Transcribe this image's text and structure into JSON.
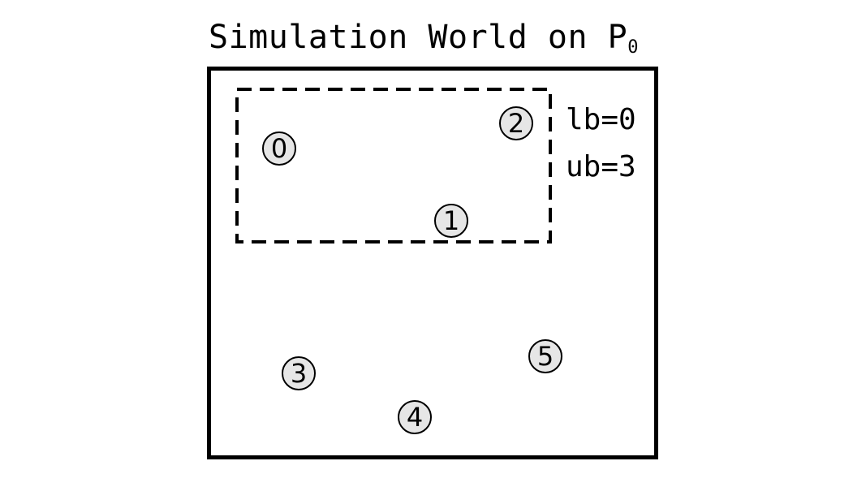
{
  "diagram": {
    "title": "Simulation World on P",
    "title_subscript": "0",
    "bounds": {
      "lb": "lb=0",
      "ub": "ub=3"
    },
    "agents": [
      {
        "id": "0"
      },
      {
        "id": "1"
      },
      {
        "id": "2"
      },
      {
        "id": "3"
      },
      {
        "id": "4"
      },
      {
        "id": "5"
      }
    ],
    "colors": {
      "agent_fill": "#e6e6e6",
      "stroke": "#000000",
      "background": "#ffffff"
    }
  }
}
